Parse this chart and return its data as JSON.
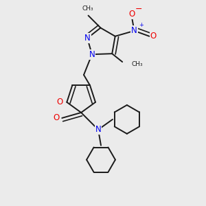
{
  "background_color": "#ebebeb",
  "bond_color": "#1a1a1a",
  "N_color": "#0000ee",
  "O_color": "#ee0000",
  "bond_lw": 1.4,
  "figsize": [
    3.0,
    3.0
  ],
  "dpi": 100,
  "xlim": [
    0.0,
    3.0
  ],
  "ylim": [
    0.0,
    3.0
  ]
}
